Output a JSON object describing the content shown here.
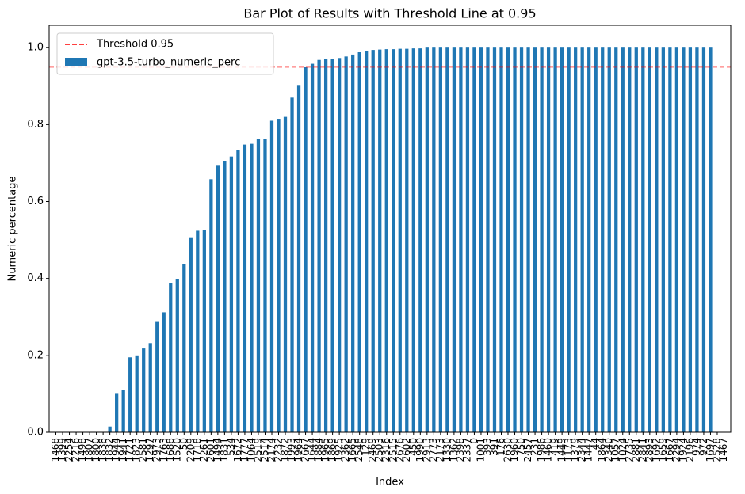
{
  "chart_data": {
    "type": "bar",
    "title": "Bar Plot of Results with Threshold Line at 0.95",
    "xlabel": "Index",
    "ylabel": "Numeric percentage",
    "categories": [
      "1468",
      "1399",
      "2254",
      "2216",
      "1498",
      "1807",
      "1800",
      "1838",
      "1832",
      "1944",
      "1941",
      "1721",
      "1823",
      "2581",
      "1297",
      "2973",
      "1763",
      "1688",
      "1520",
      "50",
      "2209",
      "1718",
      "2261",
      "2601",
      "1494",
      "1831",
      "534",
      "1672",
      "1777",
      "1064",
      "2519",
      "2514",
      "2174",
      "2232",
      "1872",
      "1993",
      "1964",
      "2667",
      "1644",
      "1884",
      "1965",
      "1869",
      "1925",
      "2362",
      "1665",
      "2548",
      "129",
      "2469",
      "2503",
      "2316",
      "2515",
      "2676",
      "2602",
      "450",
      "1990",
      "2913",
      "2773",
      "2173",
      "1330",
      "1362",
      "2398",
      "2337",
      "0",
      "1001",
      "393",
      "391",
      "176",
      "2630",
      "1960",
      "750",
      "2457",
      "231",
      "1986",
      "1460",
      "419",
      "1449",
      "1173",
      "1379",
      "2344",
      "1447",
      "44",
      "1864",
      "2340",
      "1057",
      "1024",
      "2735",
      "2881",
      "2841",
      "2893",
      "1692",
      "1659",
      "1667",
      "2294",
      "1924",
      "2196",
      "974",
      "972",
      "1697",
      "2528",
      "1467"
    ],
    "series": [
      {
        "name": "gpt-3.5-turbo_numeric_perc",
        "color": "#1f77b4",
        "values": [
          0,
          0,
          0,
          0,
          0,
          0,
          0,
          0,
          0.015,
          0.1,
          0.11,
          0.195,
          0.198,
          0.218,
          0.232,
          0.287,
          0.312,
          0.388,
          0.398,
          0.438,
          0.507,
          0.524,
          0.525,
          0.658,
          0.693,
          0.705,
          0.717,
          0.733,
          0.748,
          0.75,
          0.762,
          0.763,
          0.81,
          0.815,
          0.82,
          0.87,
          0.903,
          0.95,
          0.958,
          0.968,
          0.97,
          0.971,
          0.973,
          0.977,
          0.982,
          0.988,
          0.992,
          0.994,
          0.995,
          0.996,
          0.996,
          0.997,
          0.997,
          0.998,
          0.998,
          1,
          1,
          1,
          1,
          1,
          1,
          1,
          1,
          1,
          1,
          1,
          1,
          1,
          1,
          1,
          1,
          1,
          1,
          1,
          1,
          1,
          1,
          1,
          1,
          1,
          1,
          1,
          1,
          1,
          1,
          1,
          1,
          1,
          1,
          1,
          1,
          1,
          1,
          1,
          1,
          1,
          1,
          1,
          0,
          0
        ]
      }
    ],
    "threshold": {
      "value": 0.95,
      "label": "Threshold 0.95",
      "color": "#ff0000"
    },
    "ylim": [
      0,
      1.058
    ],
    "yticks": [
      {
        "value": 0,
        "label": "0.0"
      },
      0.2,
      0.4,
      0.6,
      0.8,
      {
        "value": 1,
        "label": "1.0"
      }
    ],
    "legend": "upper left"
  }
}
